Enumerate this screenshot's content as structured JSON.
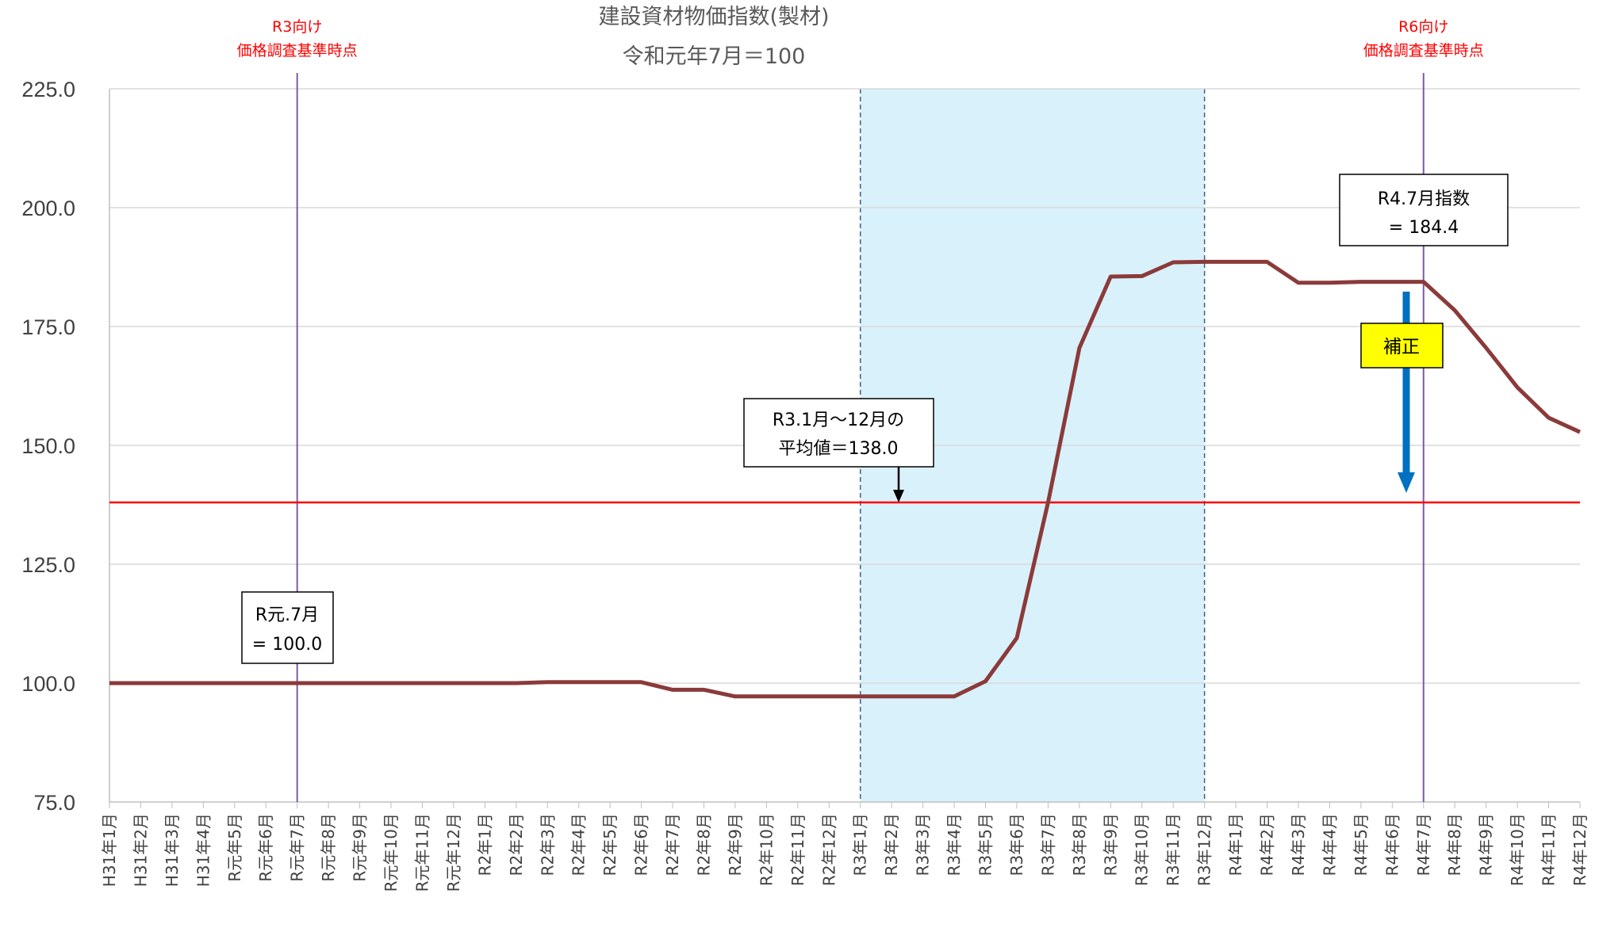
{
  "chart_data": {
    "type": "line",
    "title": "建設資材物価指数(製材)",
    "subtitle": "令和元年7月＝100",
    "ylim": [
      75,
      225
    ],
    "yticks": [
      "75.0",
      "100.0",
      "125.0",
      "150.0",
      "175.0",
      "200.0",
      "225.0"
    ],
    "grid": true,
    "categories": [
      "H31年1月",
      "H31年2月",
      "H31年3月",
      "H31年4月",
      "R元年5月",
      "R元年6月",
      "R元年7月",
      "R元年8月",
      "R元年9月",
      "R元年10月",
      "R元年11月",
      "R元年12月",
      "R2年1月",
      "R2年2月",
      "R2年3月",
      "R2年4月",
      "R2年5月",
      "R2年6月",
      "R2年7月",
      "R2年8月",
      "R2年9月",
      "R2年10月",
      "R2年11月",
      "R2年12月",
      "R3年1月",
      "R3年2月",
      "R3年3月",
      "R3年4月",
      "R3年5月",
      "R3年6月",
      "R3年7月",
      "R3年8月",
      "R3年9月",
      "R3年10月",
      "R3年11月",
      "R3年12月",
      "R4年1月",
      "R4年2月",
      "R4年3月",
      "R4年4月",
      "R4年5月",
      "R4年6月",
      "R4年7月",
      "R4年8月",
      "R4年9月",
      "R4年10月",
      "R4年11月",
      "R4年12月"
    ],
    "series": [
      {
        "color": "#8b3a3a",
        "values": [
          100.0,
          100.0,
          100.0,
          100.0,
          100.0,
          100.0,
          100.0,
          100.0,
          100.0,
          100.0,
          100.0,
          100.0,
          100.0,
          100.0,
          100.2,
          100.2,
          100.2,
          100.2,
          98.6,
          98.6,
          97.2,
          97.2,
          97.2,
          97.2,
          97.2,
          97.2,
          97.2,
          97.2,
          100.4,
          109.5,
          138.0,
          170.5,
          185.5,
          185.6,
          188.5,
          188.6,
          188.6,
          188.6,
          184.2,
          184.2,
          184.4,
          184.4,
          184.4,
          178.4,
          170.5,
          162.2,
          155.8,
          152.8
        ]
      }
    ],
    "reference_line": {
      "value": 138.0,
      "color": "#ff0000"
    },
    "vertical_markers": [
      {
        "category": "R元年7月",
        "label_line1": "R3向け",
        "label_line2": "価格調査基準時点",
        "color": "#7b5aa6"
      },
      {
        "category": "R4年7月",
        "label_line1": "R6向け",
        "label_line2": "価格調査基準時点",
        "color": "#7b5aa6"
      }
    ],
    "shaded_range": {
      "start": "R3年1月",
      "end": "R3年12月",
      "color": "#d9f1fb",
      "border": "#3f5f8f"
    },
    "annotations": [
      {
        "line1": "R元.7月",
        "line2": "= 100.0"
      },
      {
        "line1": "R3.1月～12月の",
        "line2": "平均値＝138.0"
      },
      {
        "line1": "R4.7月指数",
        "line2": "= 184.4"
      }
    ],
    "correction_label": "補正",
    "correction_color": "#0070c0",
    "highlight_color": "#ffff00"
  }
}
